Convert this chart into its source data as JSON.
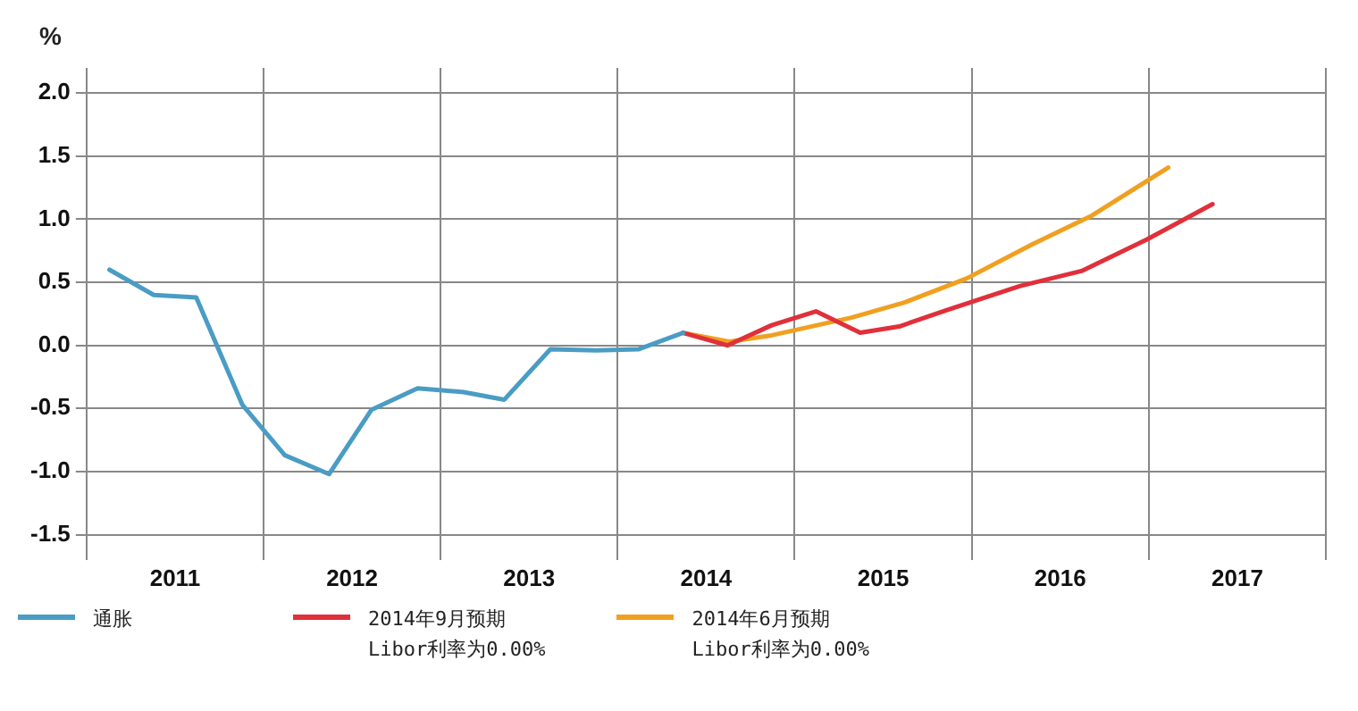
{
  "chart_data": {
    "type": "line",
    "ylabel": "%",
    "legend": "bottom",
    "grid": true,
    "marker": "none",
    "line_style": "solid",
    "xlim": [
      2011,
      2018
    ],
    "xticks": [
      {
        "value": 2011,
        "label": null
      },
      {
        "value": 2011.5,
        "label": "2011"
      },
      {
        "value": 2012,
        "label": null
      },
      {
        "value": 2012.5,
        "label": "2012"
      },
      {
        "value": 2013,
        "label": null
      },
      {
        "value": 2013.5,
        "label": "2013"
      },
      {
        "value": 2014,
        "label": null
      },
      {
        "value": 2014.5,
        "label": "2014"
      },
      {
        "value": 2015,
        "label": null
      },
      {
        "value": 2015.5,
        "label": "2015"
      },
      {
        "value": 2016,
        "label": null
      },
      {
        "value": 2016.5,
        "label": "2016"
      },
      {
        "value": 2017,
        "label": null
      },
      {
        "value": 2017.5,
        "label": "2017"
      },
      {
        "value": 2018,
        "label": null
      }
    ],
    "ylim": [
      -1.7,
      2.2
    ],
    "yticks": [
      {
        "value": -1.5,
        "label": "-1.5"
      },
      {
        "value": -1,
        "label": "-1.0"
      },
      {
        "value": -0.5,
        "label": "-0.5"
      },
      {
        "value": 0,
        "label": "0.0"
      },
      {
        "value": 0.5,
        "label": "0.5"
      },
      {
        "value": 1,
        "label": "1.0"
      },
      {
        "value": 1.5,
        "label": "1.5"
      },
      {
        "value": 2,
        "label": "2.0"
      }
    ],
    "series": [
      {
        "name": "通胀",
        "color": "#4a9cc4",
        "x": [
          2011.13,
          2011.38,
          2011.62,
          2011.88,
          2012.12,
          2012.37,
          2012.61,
          2012.87,
          2013.13,
          2013.36,
          2013.62,
          2013.88,
          2014.12,
          2014.37
        ],
        "values": [
          0.6,
          0.4,
          0.38,
          -0.47,
          -0.87,
          -1.02,
          -0.51,
          -0.34,
          -0.37,
          -0.43,
          -0.03,
          -0.04,
          -0.03,
          0.1
        ]
      },
      {
        "name": "2014年9月预期\nLibor利率为0.00%",
        "color": "#e0303a",
        "x": [
          2014.37,
          2014.62,
          2014.87,
          2015.12,
          2015.37,
          2015.59,
          2015.86,
          2016.27,
          2016.62,
          2016.99,
          2017.36
        ],
        "values": [
          0.1,
          0.0,
          0.16,
          0.27,
          0.1,
          0.15,
          0.28,
          0.47,
          0.59,
          0.84,
          1.12
        ]
      },
      {
        "name": "2014年6月预期\nLibor利率为0.00%",
        "color": "#f0a020",
        "x": [
          2014.37,
          2014.63,
          2014.87,
          2015.32,
          2015.62,
          2015.97,
          2016.34,
          2016.68,
          2017.11
        ],
        "values": [
          0.1,
          0.03,
          0.08,
          0.22,
          0.34,
          0.53,
          0.8,
          1.03,
          1.41
        ]
      }
    ]
  }
}
